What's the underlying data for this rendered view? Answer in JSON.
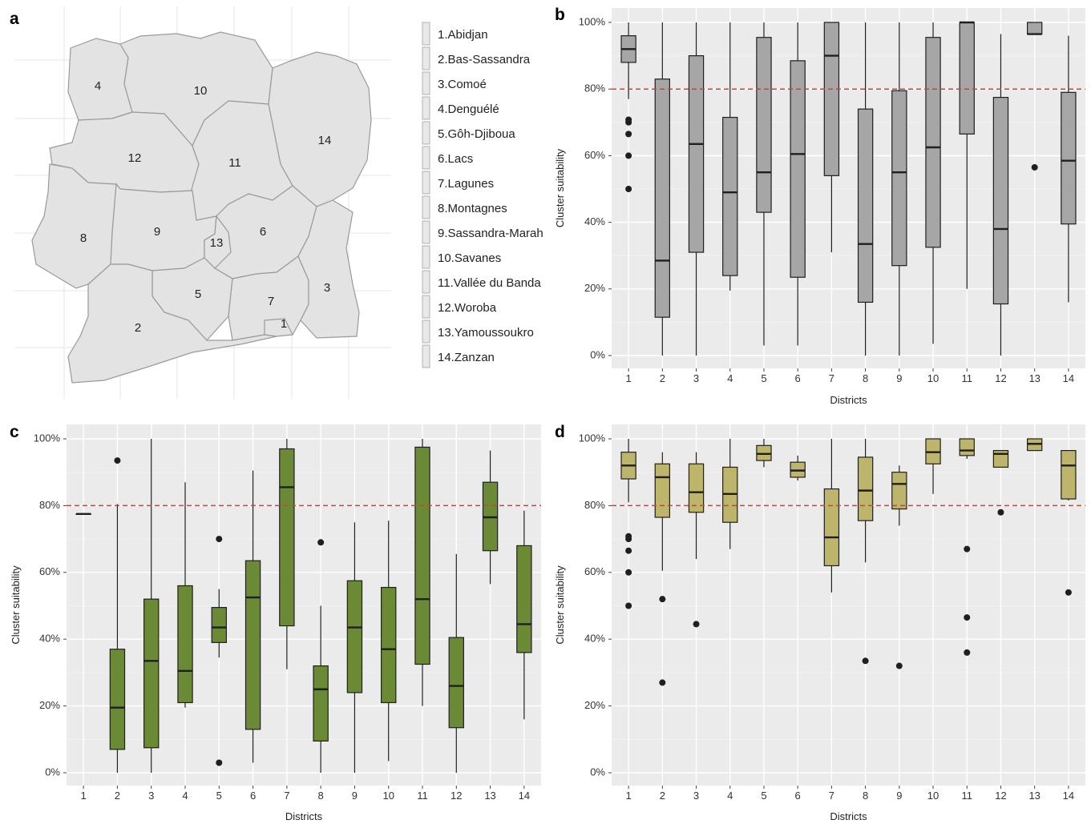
{
  "panels": {
    "a": "a",
    "b": "b",
    "c": "c",
    "d": "d"
  },
  "map": {
    "region_fill": "#e3e3e3",
    "border_color": "#9a9a9a",
    "district_numbers": [
      "1",
      "2",
      "3",
      "4",
      "5",
      "6",
      "7",
      "8",
      "9",
      "10",
      "11",
      "12",
      "13",
      "14"
    ],
    "legend": [
      "1.Abidjan",
      "2.Bas-Sassandra",
      "3.Comoé",
      "4.Denguélé",
      "5.Gôh-Djiboua",
      "6.Lacs",
      "7.Lagunes",
      "8.Montagnes",
      "9.Sassandra-Marah",
      "10.Savanes",
      "11.Vallée du Banda",
      "12.Woroba",
      "13.Yamoussoukro",
      "14.Zanzan"
    ]
  },
  "chart_data": [
    {
      "panel": "b",
      "type": "boxplot",
      "xlabel": "Districts",
      "ylabel": "Cluster suitability",
      "categories": [
        "1",
        "2",
        "3",
        "4",
        "5",
        "6",
        "7",
        "8",
        "9",
        "10",
        "11",
        "12",
        "13",
        "14"
      ],
      "y_ticks": [
        "0%",
        "20%",
        "40%",
        "60%",
        "80%",
        "100%"
      ],
      "ylim": [
        0,
        100
      ],
      "reference_line": {
        "y": 80,
        "label": "80%",
        "color": "#e8352f"
      },
      "box_color": "#a6a6a6",
      "boxes": [
        {
          "q1": 88,
          "median": 92,
          "q3": 96,
          "low": 77,
          "high": 100,
          "outliers": [
            50,
            60,
            66.5,
            70,
            70.8
          ]
        },
        {
          "q1": 11.5,
          "median": 28.5,
          "q3": 83,
          "low": 0,
          "high": 100,
          "outliers": []
        },
        {
          "q1": 31,
          "median": 63.5,
          "q3": 90,
          "low": 0,
          "high": 100,
          "outliers": []
        },
        {
          "q1": 24,
          "median": 49,
          "q3": 71.5,
          "low": 19.5,
          "high": 100,
          "outliers": []
        },
        {
          "q1": 43,
          "median": 55,
          "q3": 95.5,
          "low": 3,
          "high": 100,
          "outliers": []
        },
        {
          "q1": 23.5,
          "median": 60.5,
          "q3": 88.5,
          "low": 3,
          "high": 100,
          "outliers": []
        },
        {
          "q1": 54,
          "median": 90,
          "q3": 100,
          "low": 31,
          "high": 100,
          "outliers": []
        },
        {
          "q1": 16,
          "median": 33.5,
          "q3": 74,
          "low": 0,
          "high": 100,
          "outliers": []
        },
        {
          "q1": 27,
          "median": 55,
          "q3": 79.5,
          "low": 0,
          "high": 100,
          "outliers": []
        },
        {
          "q1": 32.5,
          "median": 62.5,
          "q3": 95.5,
          "low": 3.5,
          "high": 100,
          "outliers": []
        },
        {
          "q1": 66.5,
          "median": 100,
          "q3": 100,
          "low": 20,
          "high": 100,
          "outliers": []
        },
        {
          "q1": 15.5,
          "median": 38,
          "q3": 77.5,
          "low": 0,
          "high": 96.5,
          "outliers": []
        },
        {
          "q1": 96.5,
          "median": 96.5,
          "q3": 100,
          "low": 96.5,
          "high": 100,
          "outliers": [
            56.5
          ]
        },
        {
          "q1": 39.5,
          "median": 58.5,
          "q3": 79,
          "low": 16,
          "high": 96,
          "outliers": []
        }
      ]
    },
    {
      "panel": "c",
      "type": "boxplot",
      "xlabel": "Districts",
      "ylabel": "Cluster suitability",
      "categories": [
        "1",
        "2",
        "3",
        "4",
        "5",
        "6",
        "7",
        "8",
        "9",
        "10",
        "11",
        "12",
        "13",
        "14"
      ],
      "y_ticks": [
        "0%",
        "20%",
        "40%",
        "60%",
        "80%",
        "100%"
      ],
      "ylim": [
        0,
        100
      ],
      "reference_line": {
        "y": 80,
        "label": "80%",
        "color": "#e8352f"
      },
      "box_color": "#6b8a35",
      "boxes": [
        {
          "q1": 77.5,
          "median": 77.5,
          "q3": 77.5,
          "low": 77.5,
          "high": 77.5,
          "outliers": []
        },
        {
          "q1": 7,
          "median": 19.5,
          "q3": 37,
          "low": 0,
          "high": 80.5,
          "outliers": [
            93.5
          ]
        },
        {
          "q1": 7.5,
          "median": 33.5,
          "q3": 52,
          "low": 0,
          "high": 100,
          "outliers": []
        },
        {
          "q1": 21,
          "median": 30.5,
          "q3": 56,
          "low": 19.5,
          "high": 87,
          "outliers": []
        },
        {
          "q1": 39,
          "median": 43.5,
          "q3": 49.5,
          "low": 34.5,
          "high": 55,
          "outliers": [
            3,
            70
          ]
        },
        {
          "q1": 13,
          "median": 52.5,
          "q3": 63.5,
          "low": 3,
          "high": 90.5,
          "outliers": []
        },
        {
          "q1": 44,
          "median": 85.5,
          "q3": 97,
          "low": 31,
          "high": 100,
          "outliers": []
        },
        {
          "q1": 9.5,
          "median": 25,
          "q3": 32,
          "low": 0,
          "high": 50,
          "outliers": [
            69
          ]
        },
        {
          "q1": 24,
          "median": 43.5,
          "q3": 57.5,
          "low": 0,
          "high": 75,
          "outliers": []
        },
        {
          "q1": 21,
          "median": 37,
          "q3": 55.5,
          "low": 3.5,
          "high": 75.5,
          "outliers": []
        },
        {
          "q1": 32.5,
          "median": 52,
          "q3": 97.5,
          "low": 20,
          "high": 100,
          "outliers": []
        },
        {
          "q1": 13.5,
          "median": 26,
          "q3": 40.5,
          "low": 0,
          "high": 65.5,
          "outliers": []
        },
        {
          "q1": 66.5,
          "median": 76.5,
          "q3": 87,
          "low": 56.5,
          "high": 96.5,
          "outliers": []
        },
        {
          "q1": 36,
          "median": 44.5,
          "q3": 68,
          "low": 16,
          "high": 78.5,
          "outliers": []
        }
      ]
    },
    {
      "panel": "d",
      "type": "boxplot",
      "xlabel": "Districts",
      "ylabel": "Cluster suitability",
      "categories": [
        "1",
        "2",
        "3",
        "4",
        "5",
        "6",
        "7",
        "8",
        "9",
        "10",
        "11",
        "12",
        "13",
        "14"
      ],
      "y_ticks": [
        "0%",
        "20%",
        "40%",
        "60%",
        "80%",
        "100%"
      ],
      "ylim": [
        0,
        100
      ],
      "reference_line": {
        "y": 80,
        "label": "80%",
        "color": "#e8352f"
      },
      "box_color": "#bdb56b",
      "boxes": [
        {
          "q1": 88,
          "median": 92,
          "q3": 96,
          "low": 81,
          "high": 100,
          "outliers": [
            50,
            60,
            66.5,
            70,
            70.8
          ]
        },
        {
          "q1": 76.5,
          "median": 88.5,
          "q3": 92.5,
          "low": 60.5,
          "high": 96,
          "outliers": [
            27,
            52
          ]
        },
        {
          "q1": 78,
          "median": 84,
          "q3": 92.5,
          "low": 64,
          "high": 96,
          "outliers": [
            44.5
          ]
        },
        {
          "q1": 75,
          "median": 83.5,
          "q3": 91.5,
          "low": 67,
          "high": 100,
          "outliers": []
        },
        {
          "q1": 93.5,
          "median": 95.5,
          "q3": 98,
          "low": 91.5,
          "high": 100,
          "outliers": []
        },
        {
          "q1": 88.5,
          "median": 90.5,
          "q3": 93,
          "low": 87.5,
          "high": 95,
          "outliers": []
        },
        {
          "q1": 62,
          "median": 70.5,
          "q3": 85,
          "low": 54,
          "high": 100,
          "outliers": []
        },
        {
          "q1": 75.5,
          "median": 84.5,
          "q3": 94.5,
          "low": 63,
          "high": 100,
          "outliers": [
            33.5
          ]
        },
        {
          "q1": 79,
          "median": 86.5,
          "q3": 90,
          "low": 74,
          "high": 92,
          "outliers": [
            32
          ]
        },
        {
          "q1": 92.5,
          "median": 96,
          "q3": 100,
          "low": 83.5,
          "high": 100,
          "outliers": []
        },
        {
          "q1": 95,
          "median": 96.5,
          "q3": 100,
          "low": 94,
          "high": 100,
          "outliers": [
            36,
            46.5,
            67
          ]
        },
        {
          "q1": 91.5,
          "median": 95.5,
          "q3": 96.5,
          "low": 91.5,
          "high": 96.5,
          "outliers": [
            78
          ]
        },
        {
          "q1": 96.5,
          "median": 98.5,
          "q3": 100,
          "low": 96.5,
          "high": 100,
          "outliers": []
        },
        {
          "q1": 82,
          "median": 92,
          "q3": 96.5,
          "low": 81.5,
          "high": 96.5,
          "outliers": [
            54
          ]
        }
      ]
    }
  ]
}
